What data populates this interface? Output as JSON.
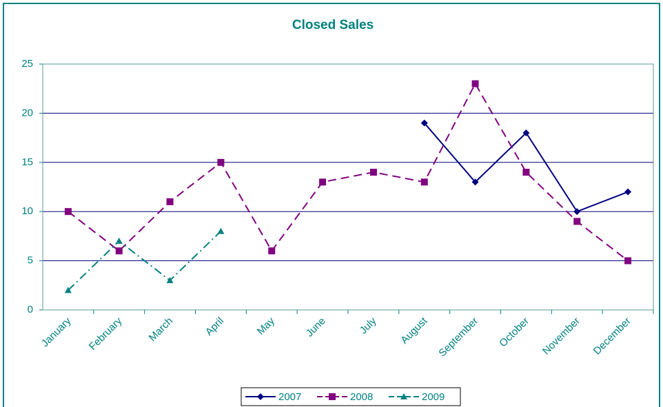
{
  "chart_data": {
    "type": "line",
    "title": "Closed Sales",
    "categories": [
      "January",
      "February",
      "March",
      "April",
      "May",
      "June",
      "July",
      "August",
      "September",
      "October",
      "November",
      "December"
    ],
    "series": [
      {
        "name": "2007",
        "color": "#000080",
        "dash": "solid",
        "marker": "diamond",
        "values": [
          null,
          null,
          null,
          null,
          null,
          null,
          null,
          19,
          13,
          18,
          10,
          12
        ]
      },
      {
        "name": "2008",
        "color": "#800080",
        "dash": "dashed",
        "marker": "square",
        "values": [
          10,
          6,
          11,
          15,
          6,
          13,
          14,
          13,
          23,
          14,
          9,
          5
        ]
      },
      {
        "name": "2009",
        "color": "#008080",
        "dash": "dashdot",
        "marker": "triangle",
        "values": [
          2,
          7,
          3,
          8,
          null,
          null,
          null,
          null,
          null,
          null,
          null,
          null
        ]
      }
    ],
    "ylim": [
      0,
      25
    ],
    "yticks": [
      0,
      5,
      10,
      15,
      20,
      25
    ],
    "grid": true,
    "legend": "bottom"
  }
}
